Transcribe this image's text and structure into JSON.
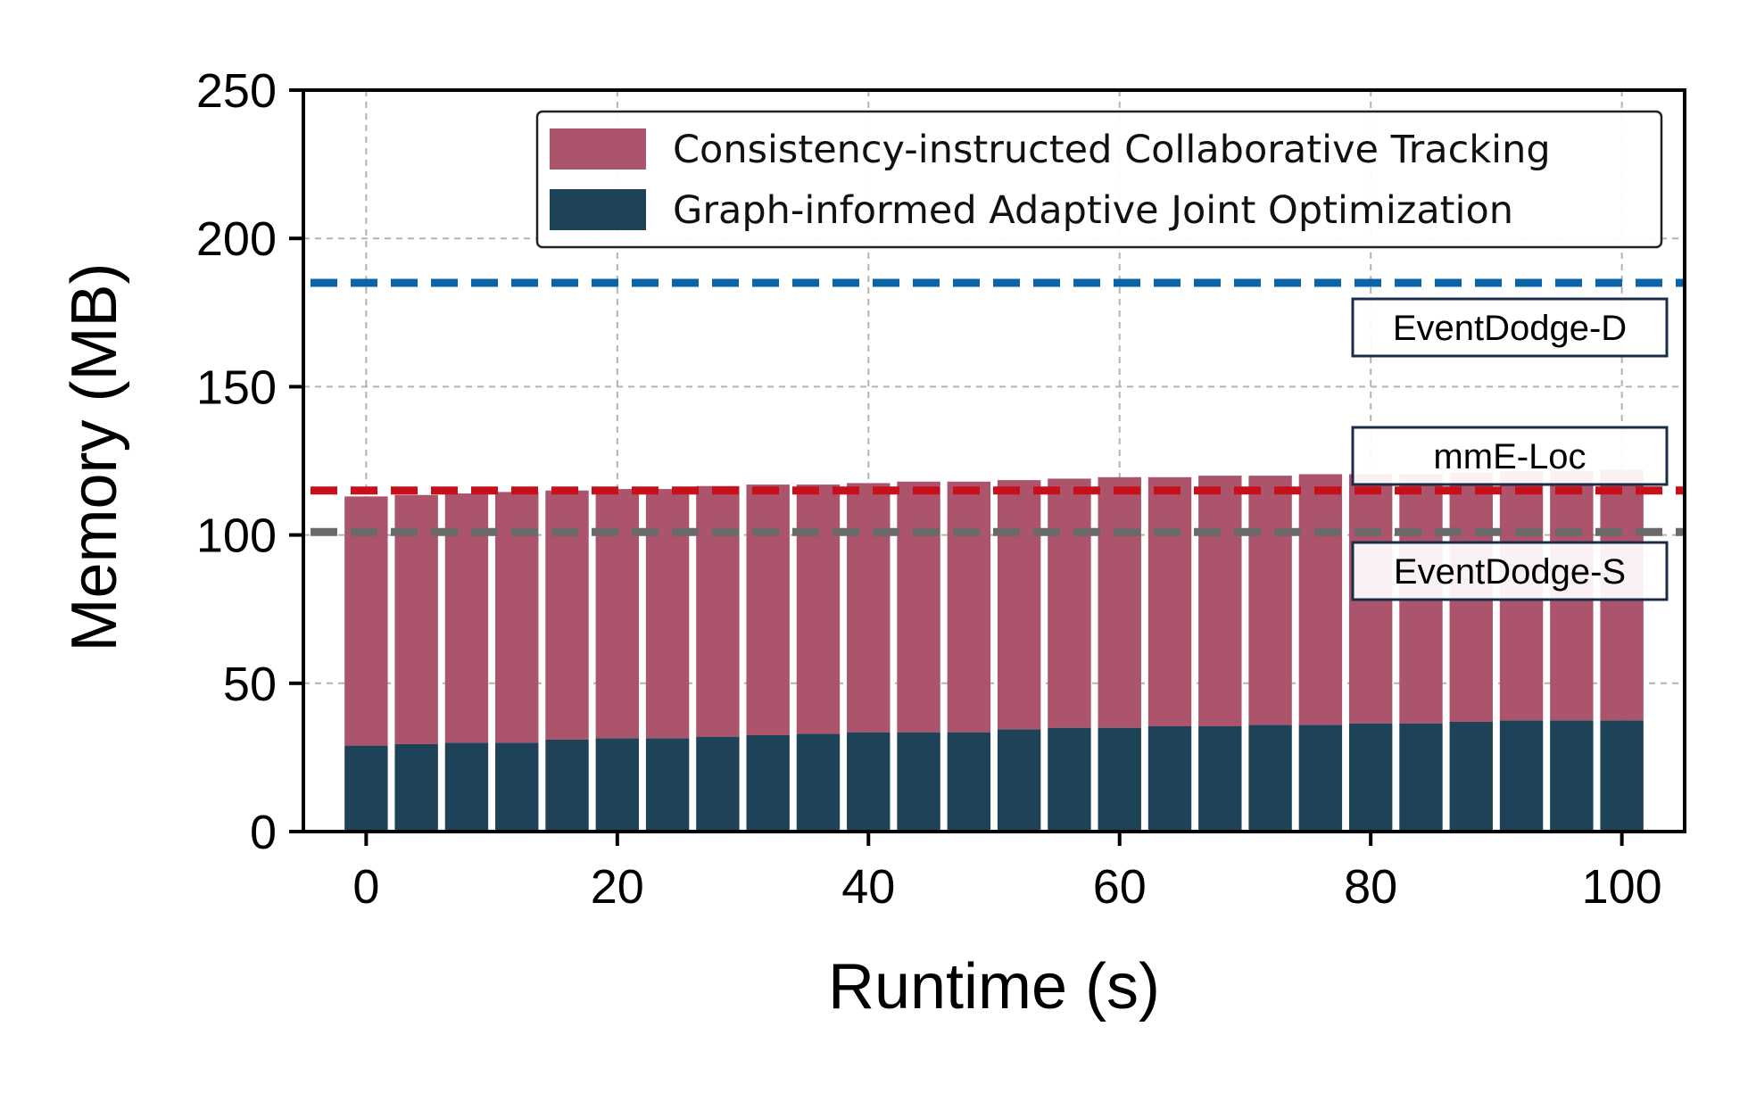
{
  "chart_data": {
    "type": "bar",
    "stacked": true,
    "xlabel": "Runtime (s)",
    "ylabel": "Memory (MB)",
    "xlim": [
      -5,
      105
    ],
    "ylim": [
      0,
      250
    ],
    "xticks": [
      0,
      20,
      40,
      60,
      80,
      100
    ],
    "yticks": [
      0,
      50,
      100,
      150,
      200,
      250
    ],
    "grid": true,
    "legend_position": "top-right",
    "x": [
      0,
      4,
      8,
      12,
      16,
      20,
      24,
      28,
      32,
      36,
      40,
      44,
      48,
      52,
      56,
      60,
      64,
      68,
      72,
      76,
      80,
      84,
      88,
      92,
      96,
      100
    ],
    "series": [
      {
        "name": "Graph-informed Adaptive Joint Optimization",
        "color": "#1e4359",
        "values": [
          29,
          29.5,
          30,
          30,
          31,
          31.5,
          31.5,
          32,
          32.5,
          33,
          33.5,
          33.5,
          33.5,
          34.5,
          35,
          35,
          35.5,
          35.5,
          36,
          36,
          36.5,
          36.5,
          37,
          37.5,
          37.5,
          37.5
        ]
      },
      {
        "name": "Consistency-instructed Collaborative Tracking",
        "color": "#ab546c",
        "values": [
          84,
          84,
          84,
          84.5,
          84,
          84,
          84,
          84.5,
          84.5,
          84,
          84,
          84.5,
          84.5,
          84,
          84,
          84.5,
          84,
          84.5,
          84,
          84.5,
          84,
          84,
          84,
          84,
          84,
          84.5
        ]
      }
    ],
    "reference_lines": [
      {
        "label": "EventDodge-D",
        "value": 185,
        "color": "#0a64a8"
      },
      {
        "label": "mmE-Loc",
        "value": 115,
        "color": "#c8101a"
      },
      {
        "label": "EventDodge-S",
        "value": 101,
        "color": "#6a6a6a"
      }
    ]
  }
}
